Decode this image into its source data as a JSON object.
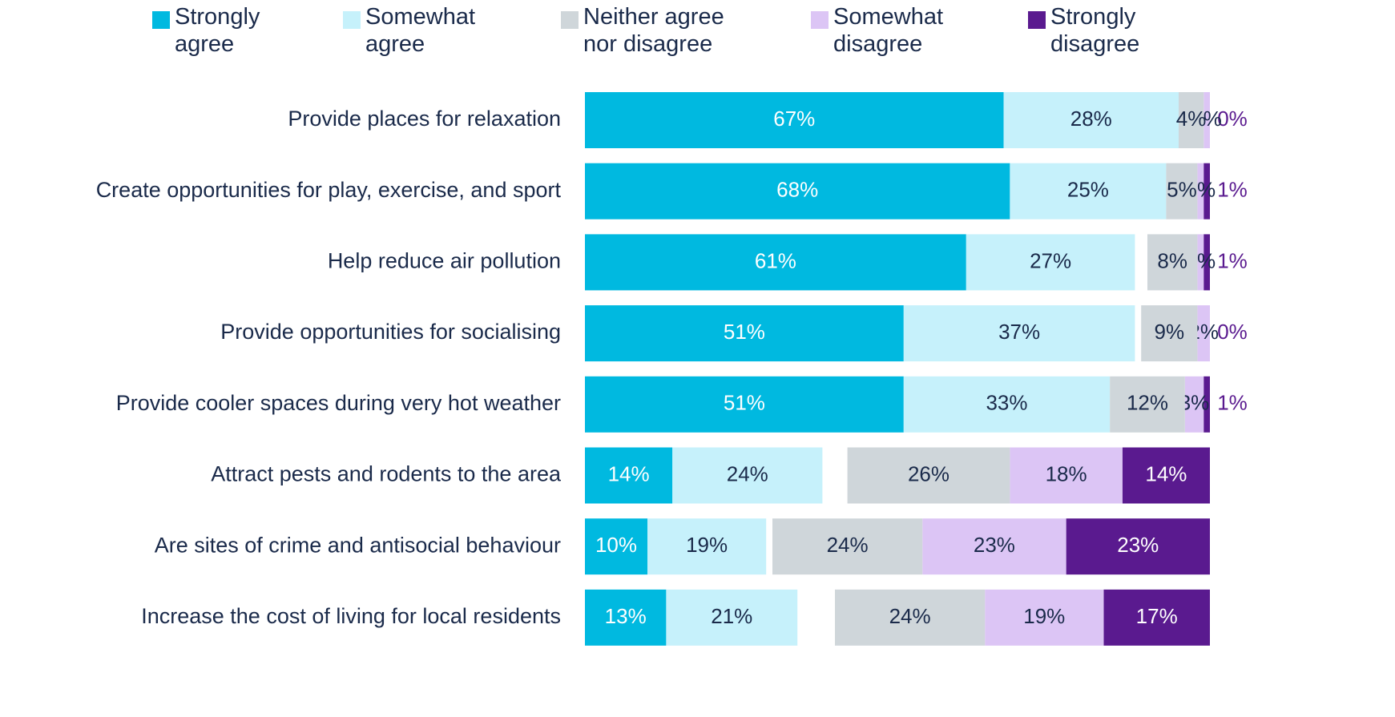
{
  "chart_data": {
    "type": "stacked-bar-horizontal",
    "categories": [
      "Provide places for relaxation",
      "Create opportunities for play, exercise, and sport",
      "Help reduce air pollution",
      "Provide opportunities for socialising",
      "Provide cooler spaces during very hot weather",
      "Attract pests and rodents to the area",
      "Are sites of crime and antisocial behaviour",
      "Increase the cost of living for local residents"
    ],
    "series": [
      {
        "name": "Strongly agree",
        "color": "#00b9e0",
        "values": [
          67,
          68,
          61,
          51,
          51,
          14,
          10,
          13
        ],
        "value_labels": [
          "67%",
          "68%",
          "61%",
          "51%",
          "51%",
          "14%",
          "10%",
          "13%"
        ]
      },
      {
        "name": "Somewhat agree",
        "color": "#c6f1fb",
        "values": [
          28,
          25,
          27,
          37,
          33,
          24,
          19,
          21
        ],
        "value_labels": [
          "28%",
          "25%",
          "27%",
          "37%",
          "33%",
          "24%",
          "19%",
          "21%"
        ]
      },
      {
        "name": "Neither agree nor disagree",
        "color": "#cfd6da",
        "values": [
          4,
          5,
          8,
          9,
          12,
          26,
          24,
          24
        ],
        "value_labels": [
          "4%",
          "5%",
          "8%",
          "9%",
          "12%",
          "26%",
          "24%",
          "24%"
        ]
      },
      {
        "name": "Somewhat disagree",
        "color": "#dcc5f5",
        "values": [
          1,
          1,
          1,
          2,
          3,
          18,
          23,
          19
        ],
        "value_labels": [
          "1%",
          "1%",
          "1%",
          "2%",
          "3%",
          "18%",
          "23%",
          "19%"
        ]
      },
      {
        "name": "Strongly disagree",
        "color": "#5a1a8f",
        "values": [
          0,
          1,
          1,
          0,
          1,
          14,
          23,
          17
        ],
        "value_labels": [
          "0%",
          "1%",
          "1%",
          "0%",
          "1%",
          "14%",
          "23%",
          "17%"
        ]
      }
    ],
    "xlim": [
      0,
      100
    ]
  }
}
